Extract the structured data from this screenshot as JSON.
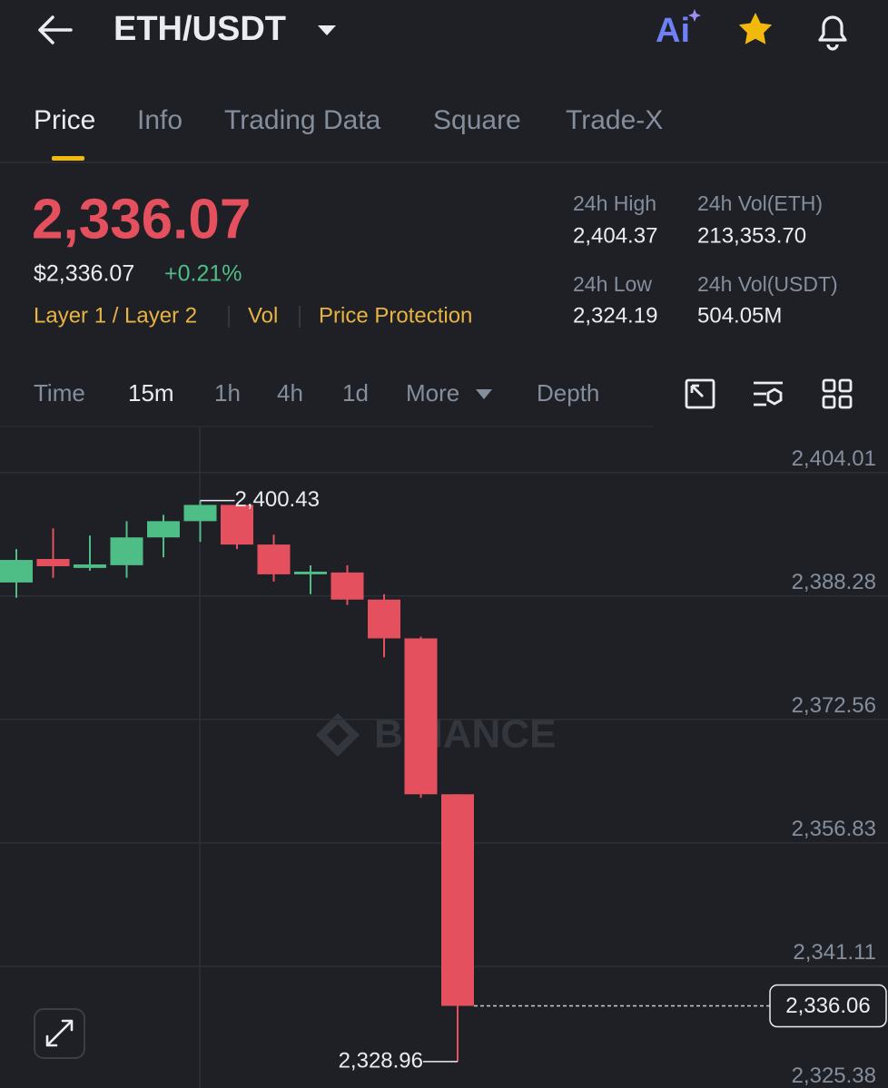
{
  "header": {
    "pair": "ETH/USDT",
    "ai": "Ai"
  },
  "tabs": [
    "Price",
    "Info",
    "Trading Data",
    "Square",
    "Trade-X"
  ],
  "price": {
    "last": "2,336.07",
    "usd": "$2,336.07",
    "change": "+0.21%"
  },
  "tags": [
    "Layer 1 / Layer 2",
    "Vol",
    "Price Protection"
  ],
  "stats": [
    {
      "label": "24h High",
      "value": "2,404.37"
    },
    {
      "label": "24h Vol(ETH)",
      "value": "213,353.70"
    },
    {
      "label": "24h Low",
      "value": "2,324.19"
    },
    {
      "label": "24h Vol(USDT)",
      "value": "504.05M"
    }
  ],
  "intervals": [
    "Time",
    "15m",
    "1h",
    "4h",
    "1d",
    "More",
    "Depth"
  ],
  "chart_data": {
    "type": "candlestick",
    "watermark": "BINANCE",
    "up_color": "#4fbd86",
    "down_color": "#e5505e",
    "open": [
      2390.0,
      2392.99,
      2391.85,
      2392.2,
      2395.74,
      2397.81,
      2399.88,
      2394.83,
      2391.04,
      2391.27,
      2387.82,
      2382.88,
      2363.02
    ],
    "high": [
      2394.25,
      2396.9,
      2395.97,
      2397.8,
      2398.61,
      2400.43,
      2400.1,
      2396.09,
      2392.18,
      2392.18,
      2388.51,
      2383.1,
      2363.02
    ],
    "low": [
      2388.05,
      2390.6,
      2391.5,
      2390.6,
      2393.2,
      2395.17,
      2394.25,
      2390.12,
      2388.51,
      2387.13,
      2380.47,
      2362.56,
      2328.96
    ],
    "close": [
      2392.87,
      2392.07,
      2392.3,
      2395.74,
      2397.81,
      2399.88,
      2394.83,
      2391.04,
      2391.38,
      2387.82,
      2382.88,
      2363.02,
      2336.06
    ],
    "max_label": "2,400.43",
    "min_label": "2,328.96",
    "last_label": "2,336.06",
    "ylim": [
      2325.6,
      2409.87
    ],
    "yticks": [
      {
        "value": 2404.01,
        "label": "2,404.01"
      },
      {
        "value": 2388.28,
        "label": "2,388.28"
      },
      {
        "value": 2372.56,
        "label": "2,372.56"
      },
      {
        "value": 2356.83,
        "label": "2,356.83"
      },
      {
        "value": 2341.11,
        "label": "2,341.11"
      },
      {
        "value": 2325.38,
        "label": "2,325.38"
      }
    ],
    "grid": true
  }
}
